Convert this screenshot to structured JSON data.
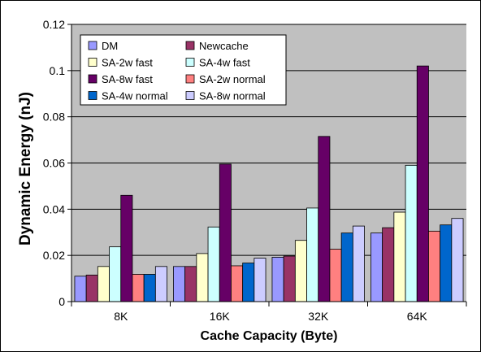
{
  "chart_data": {
    "type": "bar",
    "title": "",
    "xlabel": "Cache Capacity (Byte)",
    "ylabel": "Dynamic Energy (nJ)",
    "ylim": [
      0,
      0.12
    ],
    "yticks": [
      "0",
      "0.02",
      "0.04",
      "0.06",
      "0.08",
      "0.1",
      "0.12"
    ],
    "categories": [
      "8K",
      "16K",
      "32K",
      "64K"
    ],
    "grid": true,
    "legend_position": "top-left",
    "series": [
      {
        "name": "DM",
        "color": "#9999ff",
        "values": [
          0.011,
          0.0152,
          0.0192,
          0.0297
        ]
      },
      {
        "name": "Newcache",
        "color": "#993366",
        "values": [
          0.0115,
          0.0152,
          0.0197,
          0.032
        ]
      },
      {
        "name": "SA-2w fast",
        "color": "#ffffcc",
        "values": [
          0.0152,
          0.0208,
          0.0265,
          0.0387
        ]
      },
      {
        "name": "SA-4w fast",
        "color": "#ccffff",
        "values": [
          0.0237,
          0.0323,
          0.0405,
          0.059
        ]
      },
      {
        "name": "SA-8w fast",
        "color": "#660066",
        "values": [
          0.046,
          0.0595,
          0.0715,
          0.102
        ]
      },
      {
        "name": "SA-2w normal",
        "color": "#ff8080",
        "values": [
          0.0118,
          0.0155,
          0.0227,
          0.0305
        ]
      },
      {
        "name": "SA-4w normal",
        "color": "#0066cc",
        "values": [
          0.0118,
          0.0167,
          0.0297,
          0.0332
        ]
      },
      {
        "name": "SA-8w normal",
        "color": "#ccccff",
        "values": [
          0.0152,
          0.0188,
          0.0327,
          0.036
        ]
      }
    ]
  },
  "colors": {
    "plot_background": "#c0c0c0",
    "gridline": "#000000"
  }
}
